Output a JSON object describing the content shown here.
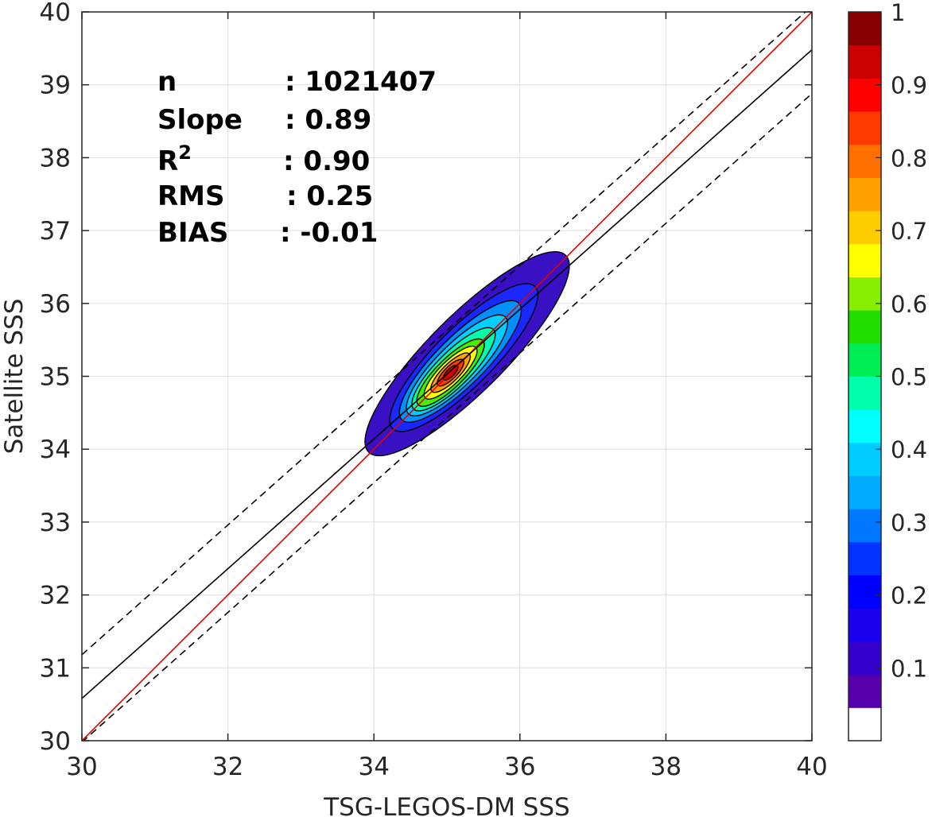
{
  "chart_data": {
    "type": "scatter",
    "subtype": "density-contour",
    "title": "",
    "xlabel": "TSG-LEGOS-DM SSS",
    "ylabel": "Satellite SSS",
    "xlim": [
      30,
      40
    ],
    "ylim": [
      30,
      40
    ],
    "xticks": [
      30,
      32,
      34,
      36,
      38,
      40
    ],
    "yticks": [
      30,
      31,
      32,
      33,
      34,
      35,
      36,
      37,
      38,
      39,
      40
    ],
    "grid": true,
    "density": {
      "center": [
        35.05,
        35.05
      ],
      "major_axis_end_low": [
        34.05,
        34.1
      ],
      "major_axis_end_high": [
        36.75,
        36.8
      ],
      "peak_value": 1.0
    },
    "lines": [
      {
        "name": "one-to-one",
        "color": "#e00000",
        "style": "solid",
        "points": [
          [
            30,
            30
          ],
          [
            40,
            40
          ]
        ]
      },
      {
        "name": "regression",
        "color": "#000000",
        "style": "solid",
        "points": [
          [
            30,
            30.58
          ],
          [
            40,
            39.48
          ]
        ]
      },
      {
        "name": "upper-bound",
        "color": "#000000",
        "style": "dashed",
        "points": [
          [
            30,
            31.18
          ],
          [
            40,
            40.08
          ]
        ]
      },
      {
        "name": "lower-bound",
        "color": "#000000",
        "style": "dashed",
        "points": [
          [
            30,
            29.98
          ],
          [
            40,
            38.88
          ]
        ]
      }
    ],
    "stats": [
      {
        "label": "n",
        "value": ": 1021407"
      },
      {
        "label": "Slope",
        "value": ": 0.89"
      },
      {
        "label": "R",
        "sup": "2",
        "value": ": 0.90"
      },
      {
        "label": "RMS",
        "value": ": 0.25"
      },
      {
        "label": "BIAS",
        "value": ": -0.01"
      }
    ],
    "colorbar": {
      "range": [
        0,
        1
      ],
      "ticks": [
        "0.1",
        "0.2",
        "0.3",
        "0.4",
        "0.5",
        "0.6",
        "0.7",
        "0.8",
        "0.9",
        "1"
      ],
      "tick_values": [
        0.1,
        0.2,
        0.3,
        0.4,
        0.5,
        0.6,
        0.7,
        0.8,
        0.9,
        1.0
      ],
      "colors": [
        "#ffffff",
        "#5500aa",
        "#3300cc",
        "#1a00ee",
        "#0000ff",
        "#0033ff",
        "#0077ff",
        "#00aaff",
        "#00ccff",
        "#00ffff",
        "#00ffaa",
        "#00ee55",
        "#22dd00",
        "#88ee00",
        "#ffff00",
        "#ffcc00",
        "#ffa000",
        "#ff7000",
        "#ff3a00",
        "#ff0000",
        "#cc0000",
        "#880000"
      ]
    },
    "contour_levels": [
      0.05,
      0.15,
      0.25,
      0.35,
      0.45,
      0.55,
      0.65,
      0.75,
      0.85,
      0.95
    ],
    "contour_colors": [
      "#3a10c4",
      "#1a28ff",
      "#0090ff",
      "#00d0ff",
      "#00ffaa",
      "#44ee00",
      "#ffff00",
      "#ffa000",
      "#ff3a00",
      "#cc0000"
    ]
  }
}
